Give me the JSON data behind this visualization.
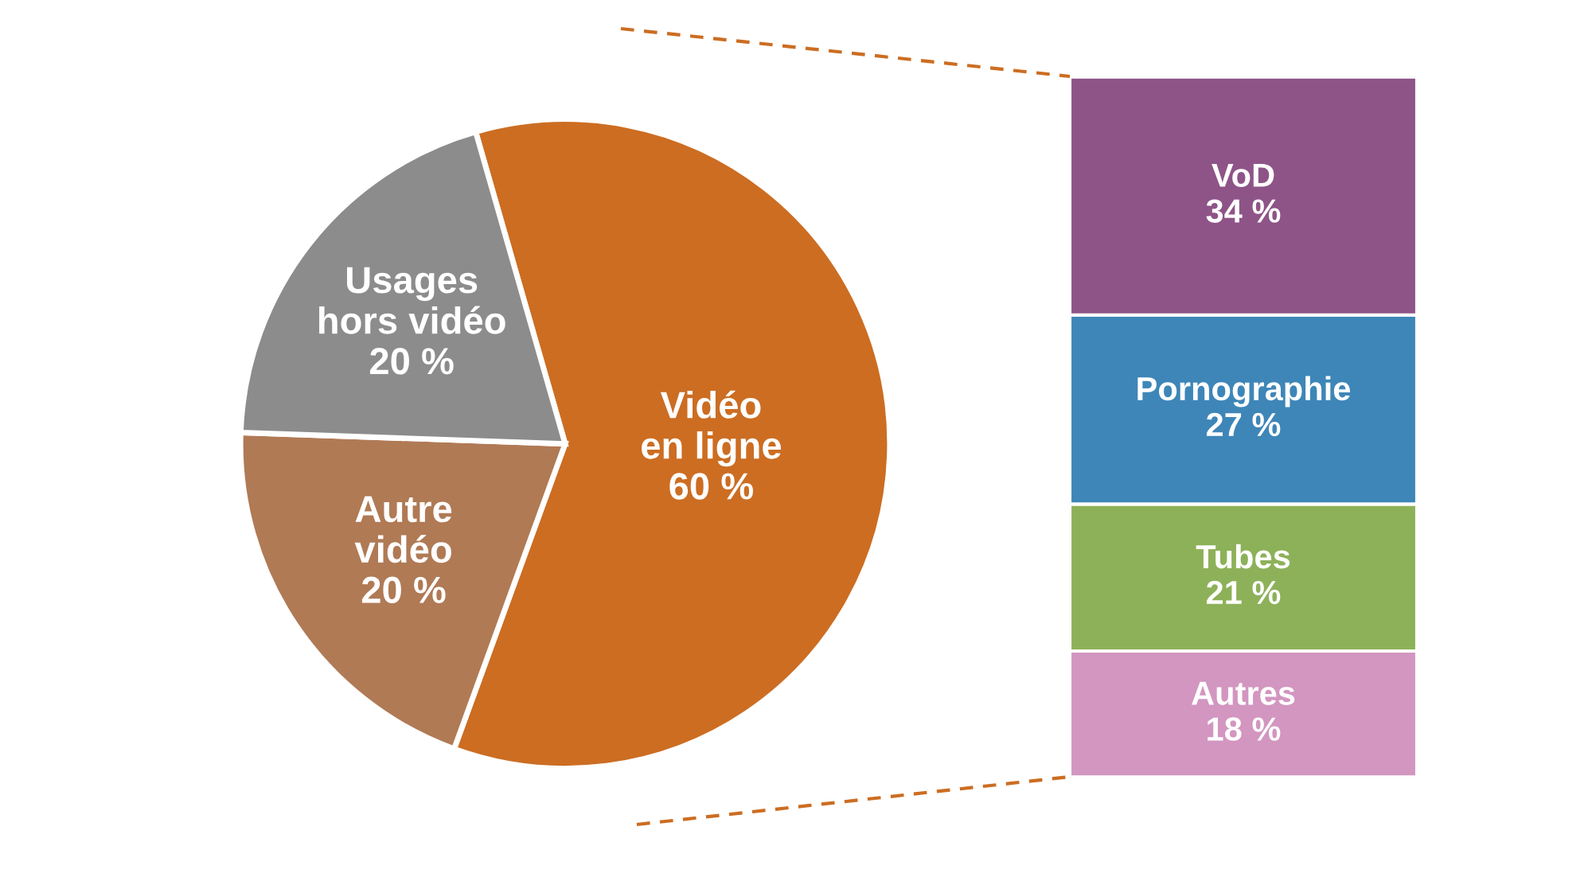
{
  "chart_data": [
    {
      "type": "pie",
      "categories": [
        "Vidéo\nen ligne",
        "Autre\nvidéo",
        "Usages\nhors vidéo"
      ],
      "values": [
        60,
        20,
        20
      ],
      "colors": [
        "#cc6d22",
        "#b07a55",
        "#8c8c8c"
      ],
      "value_labels": [
        "60 %",
        "20 %",
        "20 %"
      ],
      "legend": false
    },
    {
      "type": "bar",
      "stacked": true,
      "categories": [
        null
      ],
      "legend": false,
      "series": [
        {
          "name": "Autres",
          "color": "#d296c0",
          "values": [
            18
          ],
          "value_labels": [
            "18 %"
          ]
        },
        {
          "name": "Tubes",
          "color": "#8db159",
          "values": [
            21
          ],
          "value_labels": [
            "21 %"
          ]
        },
        {
          "name": "Pornographie",
          "color": "#3e86b8",
          "values": [
            27
          ],
          "value_labels": [
            "27 %"
          ]
        },
        {
          "name": "VoD",
          "color": "#8e5487",
          "values": [
            34
          ],
          "value_labels": [
            "34 %"
          ]
        }
      ]
    }
  ]
}
